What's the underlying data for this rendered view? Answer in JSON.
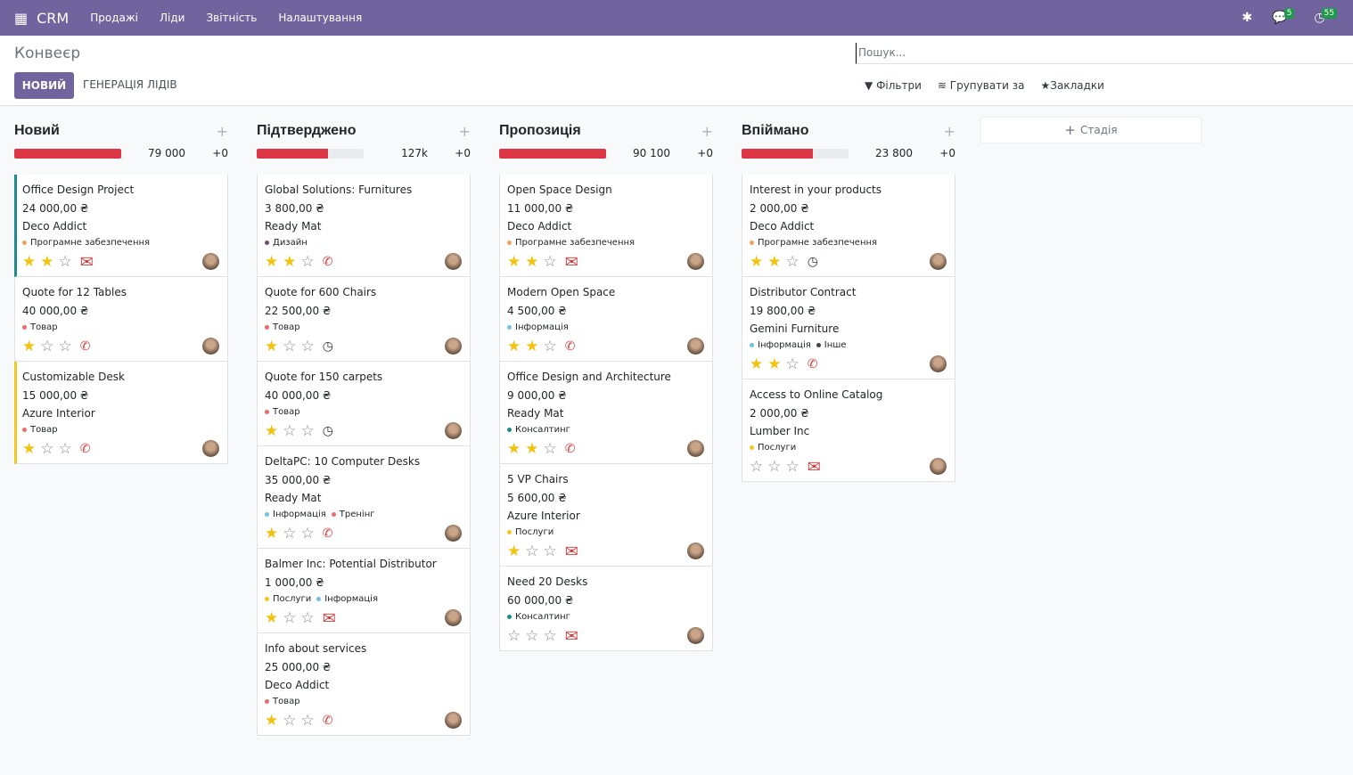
{
  "nav": {
    "brand": "CRM",
    "menu": [
      "Продажі",
      "Ліди",
      "Звітність",
      "Налаштування"
    ],
    "messages_count": "5",
    "activities_count": "55"
  },
  "control": {
    "breadcrumb": "Конвеєр",
    "new_label": "НОВИЙ",
    "generate_label": "ГЕНЕРАЦІЯ ЛІДІВ",
    "search_placeholder": "Пошук...",
    "filters": "Фільтри",
    "group_by": "Групувати за",
    "favorites": "Закладки"
  },
  "add_stage": "Стадія",
  "colors": {
    "accent": "#71639e",
    "progress": "#dc3545",
    "star": "#f3c20f"
  },
  "tag_colors": {
    "Програмне забезпечення": "#f0a15d",
    "Товар": "#ef6b6b",
    "Дизайн": "#6d4c6e",
    "Інформація": "#6ec1e4",
    "Тренінг": "#f06a7a",
    "Послуги": "#f3c623",
    "Консалтинг": "#1f8a8a",
    "Інше": "#3b4354"
  },
  "columns": [
    {
      "title": "Новий",
      "sum": "79 000",
      "plus": "+0",
      "progress": 1.0,
      "cards": [
        {
          "name": "Office Design Project",
          "amount": "24 000,00 ₴",
          "company": "Deco Addict",
          "tags": [
            "Програмне забезпечення"
          ],
          "stars": 2,
          "activity": "envelope",
          "border": "#1f8a8a"
        },
        {
          "name": "Quote for 12 Tables",
          "amount": "40 000,00 ₴",
          "company": "",
          "tags": [
            "Товар"
          ],
          "stars": 1,
          "activity": "phone"
        },
        {
          "name": "Customizable Desk",
          "amount": "15 000,00 ₴",
          "company": "Azure Interior",
          "tags": [
            "Товар"
          ],
          "stars": 1,
          "activity": "phone",
          "border": "#f3c623"
        }
      ]
    },
    {
      "title": "Підтверджено",
      "sum": "127k",
      "plus": "+0",
      "progress": 0.67,
      "cards": [
        {
          "name": "Global Solutions: Furnitures",
          "amount": "3 800,00 ₴",
          "company": "Ready Mat",
          "tags": [
            "Дизайн"
          ],
          "stars": 2,
          "activity": "phone"
        },
        {
          "name": "Quote for 600 Chairs",
          "amount": "22 500,00 ₴",
          "company": "",
          "tags": [
            "Товар"
          ],
          "stars": 1,
          "activity": "clock"
        },
        {
          "name": "Quote for 150 carpets",
          "amount": "40 000,00 ₴",
          "company": "",
          "tags": [
            "Товар"
          ],
          "stars": 1,
          "activity": "clock"
        },
        {
          "name": "DeltaPC: 10 Computer Desks",
          "amount": "35 000,00 ₴",
          "company": "Ready Mat",
          "tags": [
            "Інформація",
            "Тренінг"
          ],
          "stars": 1,
          "activity": "phone"
        },
        {
          "name": "Balmer Inc: Potential Distributor",
          "amount": "1 000,00 ₴",
          "company": "",
          "tags": [
            "Послуги",
            "Інформація"
          ],
          "stars": 1,
          "activity": "envelope"
        },
        {
          "name": "Info about services",
          "amount": "25 000,00 ₴",
          "company": "Deco Addict",
          "tags": [
            "Товар"
          ],
          "stars": 1,
          "activity": "phone"
        }
      ]
    },
    {
      "title": "Пропозиція",
      "sum": "90 100",
      "plus": "+0",
      "progress": 1.0,
      "cards": [
        {
          "name": "Open Space Design",
          "amount": "11 000,00 ₴",
          "company": "Deco Addict",
          "tags": [
            "Програмне забезпечення"
          ],
          "stars": 2,
          "activity": "envelope"
        },
        {
          "name": "Modern Open Space",
          "amount": "4 500,00 ₴",
          "company": "",
          "tags": [
            "Інформація"
          ],
          "stars": 2,
          "activity": "phone"
        },
        {
          "name": "Office Design and Architecture",
          "amount": "9 000,00 ₴",
          "company": "Ready Mat",
          "tags": [
            "Консалтинг"
          ],
          "stars": 2,
          "activity": "phone"
        },
        {
          "name": "5 VP Chairs",
          "amount": "5 600,00 ₴",
          "company": "Azure Interior",
          "tags": [
            "Послуги"
          ],
          "stars": 1,
          "activity": "envelope"
        },
        {
          "name": "Need 20 Desks",
          "amount": "60 000,00 ₴",
          "company": "",
          "tags": [
            "Консалтинг"
          ],
          "stars": 0,
          "activity": "envelope"
        }
      ]
    },
    {
      "title": "Впіймано",
      "sum": "23 800",
      "plus": "+0",
      "progress": 0.67,
      "cards": [
        {
          "name": "Interest in your products",
          "amount": "2 000,00 ₴",
          "company": "Deco Addict",
          "tags": [
            "Програмне забезпечення"
          ],
          "stars": 2,
          "activity": "clock"
        },
        {
          "name": "Distributor Contract",
          "amount": "19 800,00 ₴",
          "company": "Gemini Furniture",
          "tags": [
            "Інформація",
            "Інше"
          ],
          "stars": 2,
          "activity": "phone"
        },
        {
          "name": "Access to Online Catalog",
          "amount": "2 000,00 ₴",
          "company": "Lumber Inc",
          "tags": [
            "Послуги"
          ],
          "stars": 0,
          "activity": "envelope"
        }
      ]
    }
  ]
}
